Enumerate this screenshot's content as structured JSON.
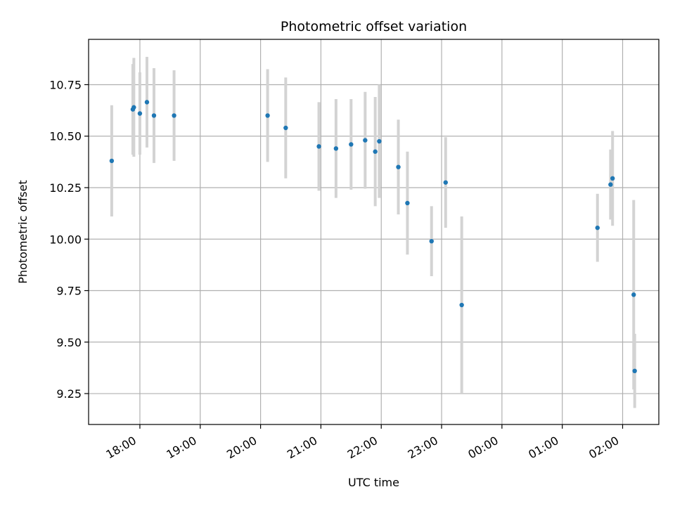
{
  "chart_data": {
    "type": "scatter",
    "title": "Photometric offset variation",
    "xlabel": "UTC time",
    "ylabel": "Photometric offset",
    "x_tick_labels": [
      "18:00",
      "19:00",
      "20:00",
      "21:00",
      "22:00",
      "23:00",
      "00:00",
      "01:00",
      "02:00"
    ],
    "x_tick_hours": [
      18,
      19,
      20,
      21,
      22,
      23,
      24,
      25,
      26
    ],
    "xlim_hours": [
      17.15,
      26.6
    ],
    "ylim": [
      9.1,
      10.97
    ],
    "y_ticks": [
      9.25,
      9.5,
      9.75,
      10.0,
      10.25,
      10.5,
      10.75
    ],
    "y_tick_labels": [
      "9.25",
      "9.50",
      "9.75",
      "10.00",
      "10.25",
      "10.50",
      "10.75"
    ],
    "grid": true,
    "point_color": "#1f77b4",
    "errorbar_color": "#d3d3d3",
    "points": [
      {
        "t": "17:32",
        "y": 10.38,
        "err": 0.27
      },
      {
        "t": "17:53",
        "y": 10.63,
        "err": 0.22
      },
      {
        "t": "17:54",
        "y": 10.64,
        "err": 0.24
      },
      {
        "t": "18:00",
        "y": 10.61,
        "err": 0.2
      },
      {
        "t": "18:07",
        "y": 10.665,
        "err": 0.22
      },
      {
        "t": "18:14",
        "y": 10.6,
        "err": 0.23
      },
      {
        "t": "18:34",
        "y": 10.6,
        "err": 0.22
      },
      {
        "t": "20:07",
        "y": 10.6,
        "err": 0.225
      },
      {
        "t": "20:25",
        "y": 10.54,
        "err": 0.245
      },
      {
        "t": "20:58",
        "y": 10.45,
        "err": 0.215
      },
      {
        "t": "21:15",
        "y": 10.44,
        "err": 0.24
      },
      {
        "t": "21:30",
        "y": 10.46,
        "err": 0.22
      },
      {
        "t": "21:44",
        "y": 10.48,
        "err": 0.235
      },
      {
        "t": "21:54",
        "y": 10.425,
        "err": 0.265
      },
      {
        "t": "21:58",
        "y": 10.475,
        "err": 0.275
      },
      {
        "t": "22:17",
        "y": 10.35,
        "err": 0.23
      },
      {
        "t": "22:26",
        "y": 10.175,
        "err": 0.25
      },
      {
        "t": "22:50",
        "y": 9.99,
        "err": 0.17
      },
      {
        "t": "23:04",
        "y": 10.275,
        "err": 0.22
      },
      {
        "t": "23:20",
        "y": 9.68,
        "err": 0.43
      },
      {
        "t": "01:35",
        "y": 10.055,
        "err": 0.165
      },
      {
        "t": "01:48",
        "y": 10.265,
        "err": 0.17
      },
      {
        "t": "01:50",
        "y": 10.295,
        "err": 0.23
      },
      {
        "t": "02:11",
        "y": 9.73,
        "err": 0.46
      },
      {
        "t": "02:12",
        "y": 9.36,
        "err": 0.18
      }
    ]
  }
}
